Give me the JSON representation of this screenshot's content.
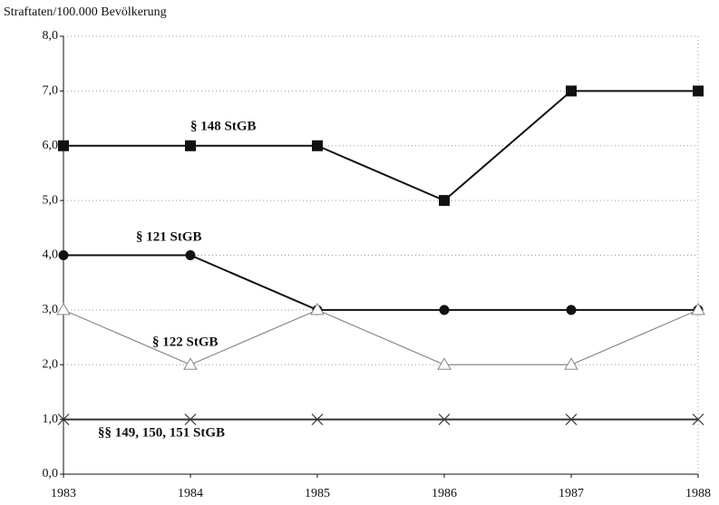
{
  "chart_data": {
    "type": "line",
    "y_axis_label": "Straftaten/100.000 Bevölkerung",
    "x": [
      1983,
      1984,
      1985,
      1986,
      1987,
      1988
    ],
    "xlim": [
      1983,
      1988
    ],
    "xticks": [
      1983,
      1984,
      1985,
      1986,
      1987,
      1988
    ],
    "ylim": [
      0,
      8
    ],
    "yticks": [
      {
        "value": 0,
        "label": "0,0"
      },
      {
        "value": 1,
        "label": "1,0"
      },
      {
        "value": 2,
        "label": "2,0"
      },
      {
        "value": 3,
        "label": "3,0"
      },
      {
        "value": 4,
        "label": "4,0"
      },
      {
        "value": 5,
        "label": "5,0"
      },
      {
        "value": 6,
        "label": "6,0"
      },
      {
        "value": 7,
        "label": "7,0"
      },
      {
        "value": 8,
        "label": "8,0"
      }
    ],
    "grid": true,
    "series": [
      {
        "name": "§ 148 StGB",
        "color": "#111111",
        "marker": "square",
        "values": [
          6,
          6,
          6,
          5,
          7,
          7
        ]
      },
      {
        "name": "§ 121 StGB",
        "color": "#111111",
        "marker": "circle",
        "values": [
          4,
          4,
          3,
          3,
          3,
          3
        ]
      },
      {
        "name": "§ 122 StGB",
        "color": "#888888",
        "marker": "triangle",
        "values": [
          3,
          2,
          3,
          2,
          2,
          3
        ]
      },
      {
        "name": "§§ 149, 150, 151 StGB",
        "color": "#333333",
        "marker": "x",
        "values": [
          1,
          1,
          1,
          1,
          1,
          1
        ]
      }
    ]
  }
}
